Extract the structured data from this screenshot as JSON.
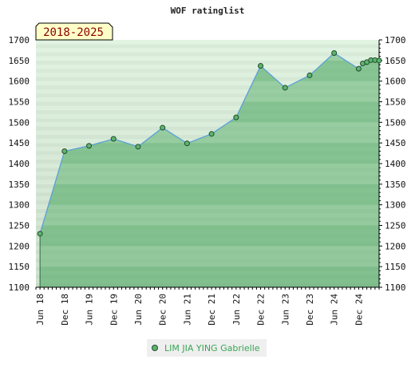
{
  "chart_data": {
    "type": "area",
    "title": "WOF ratinglist",
    "badge": "2018-2025",
    "ylim": [
      1100,
      1700
    ],
    "yticks": [
      1100,
      1150,
      1200,
      1250,
      1300,
      1350,
      1400,
      1450,
      1500,
      1550,
      1600,
      1650,
      1700
    ],
    "xlim": [
      "2018-05",
      "2025-05"
    ],
    "xticks": [
      {
        "label": "Jun 18",
        "month": "2018-06"
      },
      {
        "label": "Dec 18",
        "month": "2018-12"
      },
      {
        "label": "Jun 19",
        "month": "2019-06"
      },
      {
        "label": "Dec 19",
        "month": "2019-12"
      },
      {
        "label": "Jun 20",
        "month": "2020-06"
      },
      {
        "label": "Dec 20",
        "month": "2020-12"
      },
      {
        "label": "Jun 21",
        "month": "2021-06"
      },
      {
        "label": "Dec 21",
        "month": "2021-12"
      },
      {
        "label": "Jun 22",
        "month": "2022-06"
      },
      {
        "label": "Dec 22",
        "month": "2022-12"
      },
      {
        "label": "Jun 23",
        "month": "2023-06"
      },
      {
        "label": "Dec 23",
        "month": "2023-12"
      },
      {
        "label": "Jun 24",
        "month": "2024-06"
      },
      {
        "label": "Dec 24",
        "month": "2024-12"
      }
    ],
    "series": [
      {
        "name": "LIM JIA YING Gabrielle",
        "color": "#5fb36f",
        "line_color": "#5aa0d8",
        "points": [
          {
            "x": "2018-06",
            "y": 1230
          },
          {
            "x": "2018-12",
            "y": 1430
          },
          {
            "x": "2019-06",
            "y": 1443
          },
          {
            "x": "2019-12",
            "y": 1460
          },
          {
            "x": "2020-06",
            "y": 1441
          },
          {
            "x": "2020-12",
            "y": 1487
          },
          {
            "x": "2021-06",
            "y": 1449
          },
          {
            "x": "2021-12",
            "y": 1472
          },
          {
            "x": "2022-06",
            "y": 1512
          },
          {
            "x": "2022-12",
            "y": 1637
          },
          {
            "x": "2023-06",
            "y": 1584
          },
          {
            "x": "2023-12",
            "y": 1614
          },
          {
            "x": "2024-06",
            "y": 1668
          },
          {
            "x": "2024-12",
            "y": 1630
          },
          {
            "x": "2025-01",
            "y": 1643
          },
          {
            "x": "2025-02",
            "y": 1646
          },
          {
            "x": "2025-03",
            "y": 1651
          },
          {
            "x": "2025-04",
            "y": 1651
          },
          {
            "x": "2025-05",
            "y": 1650
          }
        ]
      }
    ],
    "grid": false,
    "legend": "bottom"
  }
}
